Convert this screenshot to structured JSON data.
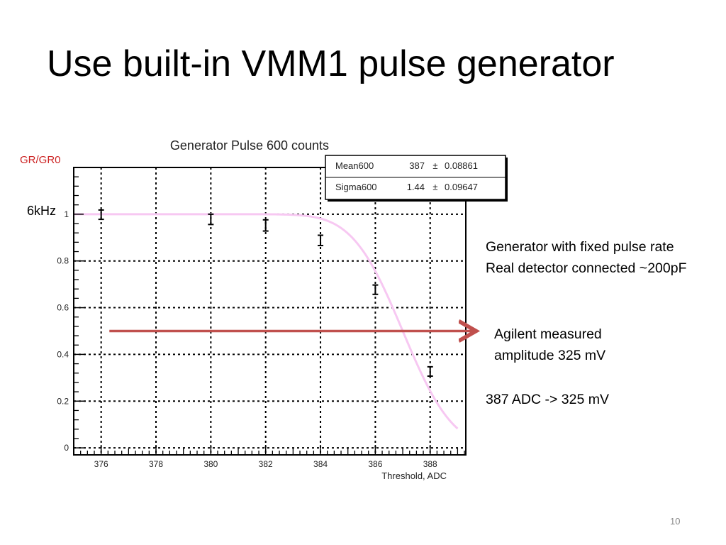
{
  "slide": {
    "title": "Use built-in VMM1 pulse generator",
    "page_number": "10",
    "rate_label": "6kHz",
    "notes_top": [
      "Generator with fixed pulse rate",
      "Real detector connected ~200pF"
    ],
    "notes_arrow": [
      "Agilent measured",
      "amplitude 325 mV"
    ],
    "note_conversion": "387 ADC -> 325 mV",
    "colors": {
      "arrow": "#c0504d",
      "fit_curve": "#f7c8f2",
      "ylabel": "#cc2222"
    }
  },
  "chart_data": {
    "type": "scatter",
    "title": "Generator Pulse 600 counts",
    "xlabel": "Threshold, ADC",
    "ylabel": "GR/GR0",
    "xlim": [
      375,
      389.3
    ],
    "ylim": [
      -0.03,
      1.2
    ],
    "xticks": [
      376,
      378,
      380,
      382,
      384,
      386,
      388
    ],
    "xtick_labels": [
      "376",
      "378",
      "380",
      "382",
      "384",
      "386",
      "388"
    ],
    "yticks": [
      0,
      0.2,
      0.4,
      0.6,
      0.8,
      1
    ],
    "ytick_labels": [
      "0",
      "0.2",
      "0.4",
      "0.6",
      "0.8",
      "1"
    ],
    "grid": true,
    "series": [
      {
        "points": [
          {
            "x": 376,
            "y": 0.998,
            "err": 0.02
          },
          {
            "x": 380,
            "y": 0.978,
            "err": 0.022
          },
          {
            "x": 382,
            "y": 0.952,
            "err": 0.024
          },
          {
            "x": 384,
            "y": 0.888,
            "err": 0.022
          },
          {
            "x": 386,
            "y": 0.677,
            "err": 0.02
          },
          {
            "x": 388,
            "y": 0.327,
            "err": 0.02
          }
        ]
      }
    ],
    "fit": {
      "function": "erfc",
      "mean": 387,
      "sigma": 1.44,
      "x_range": [
        375,
        389
      ]
    },
    "stats_box": {
      "rows": [
        {
          "name": "Mean600",
          "value": "387",
          "pm": "±",
          "err": "0.08861"
        },
        {
          "name": "Sigma600",
          "value": "1.44",
          "pm": "±",
          "err": "0.09647"
        }
      ]
    },
    "annotation_arrow": {
      "y": 0.5,
      "x_start": 376.3
    }
  }
}
